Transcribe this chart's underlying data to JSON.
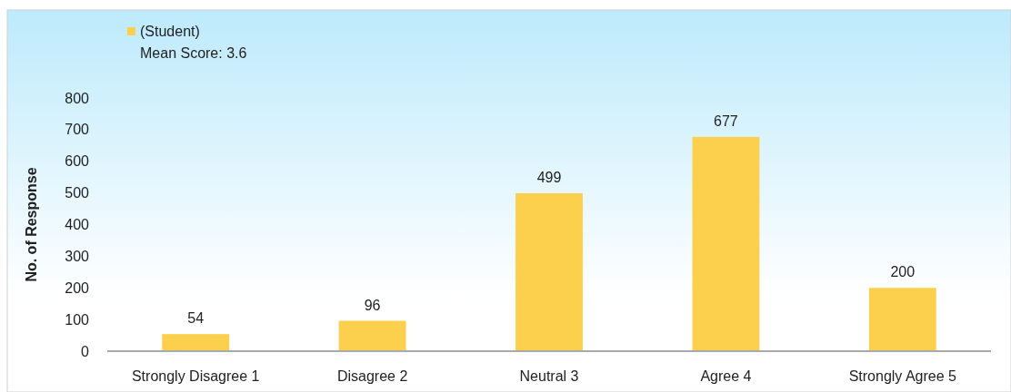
{
  "chart_data": {
    "type": "bar",
    "ylabel": "No. of Response",
    "categories": [
      "Strongly Disagree 1",
      "Disagree 2",
      "Neutral 3",
      "Agree 4",
      "Strongly Agree 5"
    ],
    "series": [
      {
        "name": "(Student)",
        "color": "#fcd04d",
        "values": [
          54,
          96,
          499,
          677,
          200
        ]
      }
    ],
    "ylim": [
      0,
      800
    ],
    "yticks": [
      0,
      100,
      200,
      300,
      400,
      500,
      600,
      700,
      800
    ],
    "data_labels": true,
    "legend": "top left",
    "annotations": [
      "Mean Score: 3.6"
    ]
  }
}
